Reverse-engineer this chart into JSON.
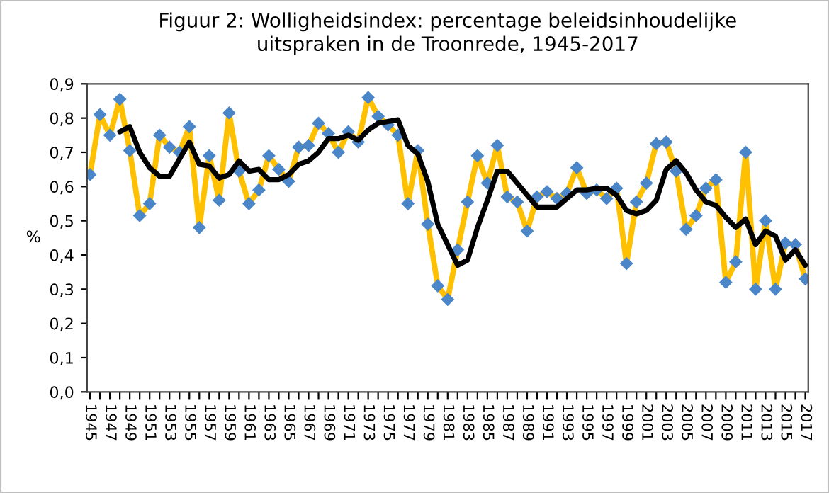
{
  "chart_data": {
    "type": "line",
    "title": "Figuur 2: Wolligheidsindex: percentage beleidsinhoudelijke\nuitspraken in de Troonrede, 1945-2017",
    "ylabel": "%",
    "series": [
      {
        "color": "#ffc000",
        "marker": "diamond",
        "x": [
          1945,
          1946,
          1947,
          1948,
          1949,
          1950,
          1951,
          1952,
          1953,
          1954,
          1955,
          1956,
          1957,
          1958,
          1959,
          1960,
          1961,
          1962,
          1963,
          1964,
          1965,
          1966,
          1967,
          1968,
          1969,
          1970,
          1971,
          1972,
          1973,
          1974,
          1975,
          1976,
          1977,
          1978,
          1979,
          1980,
          1981,
          1982,
          1983,
          1984,
          1985,
          1986,
          1987,
          1988,
          1989,
          1990,
          1991,
          1992,
          1993,
          1994,
          1995,
          1996,
          1997,
          1998,
          1999,
          2000,
          2001,
          2002,
          2003,
          2004,
          2005,
          2006,
          2007,
          2008,
          2009,
          2010,
          2011,
          2012,
          2013,
          2014,
          2015,
          2016,
          2017
        ],
        "values": [
          0.635,
          0.81,
          0.75,
          0.855,
          0.705,
          0.515,
          0.55,
          0.75,
          0.715,
          0.7,
          0.775,
          0.48,
          0.69,
          0.56,
          0.815,
          0.645,
          0.55,
          0.59,
          0.69,
          0.65,
          0.615,
          0.715,
          0.72,
          0.785,
          0.755,
          0.7,
          0.76,
          0.73,
          0.86,
          0.805,
          0.78,
          0.75,
          0.55,
          0.705,
          0.49,
          0.31,
          0.27,
          0.415,
          0.555,
          0.69,
          0.61,
          0.72,
          0.57,
          0.555,
          0.47,
          0.57,
          0.585,
          0.565,
          0.58,
          0.655,
          0.58,
          0.59,
          0.565,
          0.595,
          0.375,
          0.555,
          0.61,
          0.725,
          0.73,
          0.645,
          0.475,
          0.515,
          0.595,
          0.62,
          0.32,
          0.38,
          0.7,
          0.3,
          0.5,
          0.3,
          0.435,
          0.43,
          0.33
        ]
      },
      {
        "color": "#000000",
        "marker": "none",
        "x": [
          1948,
          1949,
          1950,
          1951,
          1952,
          1953,
          1954,
          1955,
          1956,
          1957,
          1958,
          1959,
          1960,
          1961,
          1962,
          1963,
          1964,
          1965,
          1966,
          1967,
          1968,
          1969,
          1970,
          1971,
          1972,
          1973,
          1974,
          1975,
          1976,
          1977,
          1978,
          1979,
          1980,
          1981,
          1982,
          1983,
          1984,
          1985,
          1986,
          1987,
          1988,
          1989,
          1990,
          1991,
          1992,
          1993,
          1994,
          1995,
          1996,
          1997,
          1998,
          1999,
          2000,
          2001,
          2002,
          2003,
          2004,
          2005,
          2006,
          2007,
          2008,
          2009,
          2010,
          2011,
          2012,
          2013,
          2014,
          2015,
          2016,
          2017
        ],
        "values": [
          0.76,
          0.775,
          0.7,
          0.655,
          0.63,
          0.63,
          0.68,
          0.73,
          0.665,
          0.66,
          0.625,
          0.635,
          0.675,
          0.645,
          0.65,
          0.62,
          0.62,
          0.635,
          0.665,
          0.675,
          0.7,
          0.74,
          0.74,
          0.75,
          0.735,
          0.765,
          0.785,
          0.79,
          0.795,
          0.72,
          0.695,
          0.615,
          0.49,
          0.43,
          0.37,
          0.385,
          0.48,
          0.56,
          0.645,
          0.645,
          0.61,
          0.575,
          0.54,
          0.54,
          0.54,
          0.565,
          0.59,
          0.59,
          0.595,
          0.595,
          0.575,
          0.53,
          0.52,
          0.53,
          0.56,
          0.65,
          0.675,
          0.64,
          0.59,
          0.555,
          0.545,
          0.51,
          0.48,
          0.505,
          0.43,
          0.47,
          0.455,
          0.385,
          0.415,
          0.37
        ]
      }
    ],
    "xlim": [
      1944.7,
      2017.3
    ],
    "xticks": [
      1945,
      {
        "value": 1946,
        "label": null
      },
      1947,
      {
        "value": 1948,
        "label": null
      },
      1949,
      {
        "value": 1950,
        "label": null
      },
      1951,
      {
        "value": 1952,
        "label": null
      },
      1953,
      {
        "value": 1954,
        "label": null
      },
      1955,
      {
        "value": 1956,
        "label": null
      },
      1957,
      {
        "value": 1958,
        "label": null
      },
      1959,
      {
        "value": 1960,
        "label": null
      },
      1961,
      {
        "value": 1962,
        "label": null
      },
      1963,
      {
        "value": 1964,
        "label": null
      },
      1965,
      {
        "value": 1966,
        "label": null
      },
      1967,
      {
        "value": 1968,
        "label": null
      },
      1969,
      {
        "value": 1970,
        "label": null
      },
      1971,
      {
        "value": 1972,
        "label": null
      },
      1973,
      {
        "value": 1974,
        "label": null
      },
      1975,
      {
        "value": 1976,
        "label": null
      },
      1977,
      {
        "value": 1978,
        "label": null
      },
      1979,
      {
        "value": 1980,
        "label": null
      },
      1981,
      {
        "value": 1982,
        "label": null
      },
      1983,
      {
        "value": 1984,
        "label": null
      },
      1985,
      {
        "value": 1986,
        "label": null
      },
      1987,
      {
        "value": 1988,
        "label": null
      },
      1989,
      {
        "value": 1990,
        "label": null
      },
      1991,
      {
        "value": 1992,
        "label": null
      },
      1993,
      {
        "value": 1994,
        "label": null
      },
      1995,
      {
        "value": 1996,
        "label": null
      },
      1997,
      {
        "value": 1998,
        "label": null
      },
      1999,
      {
        "value": 2000,
        "label": null
      },
      2001,
      {
        "value": 2002,
        "label": null
      },
      2003,
      {
        "value": 2004,
        "label": null
      },
      2005,
      {
        "value": 2006,
        "label": null
      },
      2007,
      {
        "value": 2008,
        "label": null
      },
      2009,
      {
        "value": 2010,
        "label": null
      },
      2011,
      {
        "value": 2012,
        "label": null
      },
      2013,
      {
        "value": 2014,
        "label": null
      },
      2015,
      {
        "value": 2016,
        "label": null
      },
      2017
    ],
    "ylim": [
      0,
      0.9
    ],
    "yticks": [
      {
        "value": 0,
        "label": "0,0"
      },
      {
        "value": 0.1,
        "label": "0,1"
      },
      {
        "value": 0.2,
        "label": "0,2"
      },
      {
        "value": 0.3,
        "label": "0,3"
      },
      {
        "value": 0.4,
        "label": "0,4"
      },
      {
        "value": 0.5,
        "label": "0,5"
      },
      {
        "value": 0.6,
        "label": "0,6"
      },
      {
        "value": 0.7,
        "label": "0,7"
      },
      {
        "value": 0.8,
        "label": "0,8"
      },
      {
        "value": 0.9,
        "label": "0,9"
      }
    ],
    "grid": false
  }
}
